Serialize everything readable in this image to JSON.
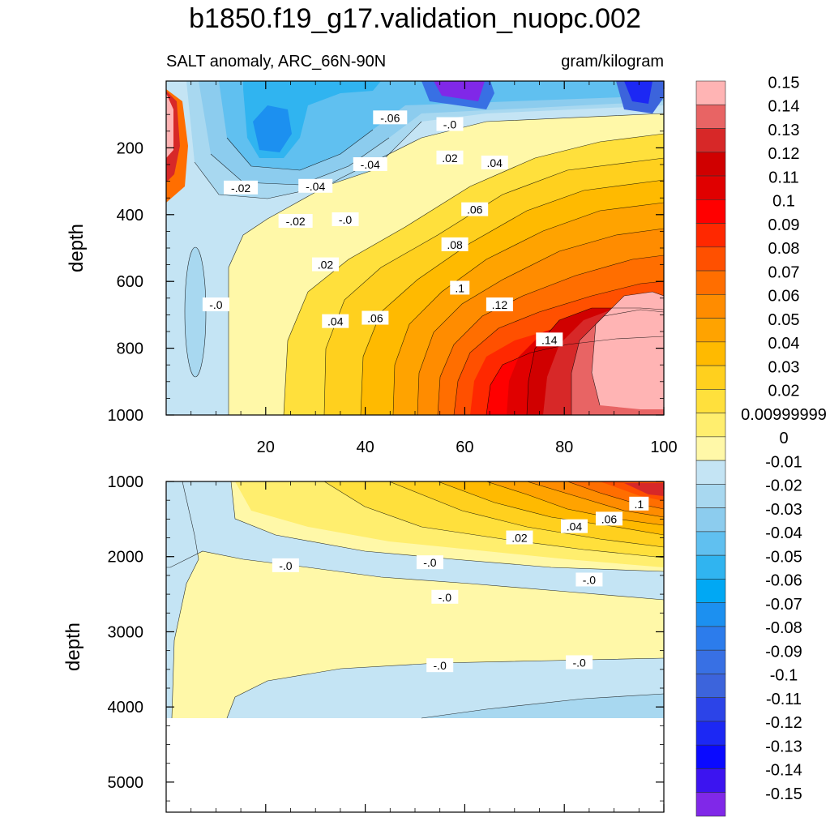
{
  "title": "b1850.f19_g17.validation_nuopc.002",
  "chart_data": {
    "type": "contour",
    "title": "b1850.f19_g17.validation_nuopc.002",
    "variable_label": "SALT anomaly, ARC_66N-90N",
    "units_label": "gram/kilogram",
    "panels": [
      {
        "name": "upper",
        "ylabel": "depth",
        "ylim": [
          0,
          1000
        ],
        "yticks": [
          "200",
          "400",
          "600",
          "800",
          "1000"
        ],
        "xlim": [
          0,
          100
        ],
        "xticks": [
          "20",
          "40",
          "60",
          "80",
          "100"
        ],
        "contour_labels": [
          {
            "text": "-.06",
            "x": 45,
            "y": 110
          },
          {
            "text": "-.0",
            "x": 57,
            "y": 130
          },
          {
            "text": ".02",
            "x": 57,
            "y": 230
          },
          {
            "text": ".04",
            "x": 66,
            "y": 245
          },
          {
            "text": "-.04",
            "x": 41,
            "y": 250
          },
          {
            "text": "-.02",
            "x": 15,
            "y": 320
          },
          {
            "text": "-.04",
            "x": 30,
            "y": 315
          },
          {
            "text": "-.02",
            "x": 26,
            "y": 420
          },
          {
            "text": "-.0",
            "x": 36,
            "y": 415
          },
          {
            "text": ".06",
            "x": 62,
            "y": 385
          },
          {
            "text": ".08",
            "x": 58,
            "y": 490
          },
          {
            "text": ".02",
            "x": 32,
            "y": 550
          },
          {
            "text": ".1",
            "x": 59,
            "y": 620
          },
          {
            "text": ".12",
            "x": 67,
            "y": 670
          },
          {
            "text": "-.0",
            "x": 10,
            "y": 670
          },
          {
            "text": ".04",
            "x": 34,
            "y": 720
          },
          {
            "text": ".06",
            "x": 42,
            "y": 710
          },
          {
            "text": ".14",
            "x": 77,
            "y": 775
          }
        ]
      },
      {
        "name": "lower",
        "ylabel": "depth",
        "ylim": [
          1000,
          5400
        ],
        "yticks": [
          "1000",
          "2000",
          "3000",
          "4000",
          "5000"
        ],
        "xlim": [
          0,
          100
        ],
        "contour_labels": [
          {
            "text": ".1",
            "x": 95,
            "y": 1300
          },
          {
            "text": ".06",
            "x": 89,
            "y": 1500
          },
          {
            "text": ".04",
            "x": 82,
            "y": 1600
          },
          {
            "text": ".02",
            "x": 71,
            "y": 1750
          },
          {
            "text": "-.0",
            "x": 24,
            "y": 2120
          },
          {
            "text": "-.0",
            "x": 53,
            "y": 2080
          },
          {
            "text": "-.0",
            "x": 85,
            "y": 2310
          },
          {
            "text": "-.0",
            "x": 56,
            "y": 2540
          },
          {
            "text": "-.0",
            "x": 55,
            "y": 3450
          },
          {
            "text": "-.0",
            "x": 83,
            "y": 3410
          }
        ]
      }
    ],
    "colorbar": {
      "levels": [
        "0.15",
        "0.14",
        "0.13",
        "0.12",
        "0.11",
        "0.1",
        "0.09",
        "0.08",
        "0.07",
        "0.06",
        "0.05",
        "0.04",
        "0.03",
        "0.02",
        "0.00999999",
        "0",
        "-0.01",
        "-0.02",
        "-0.03",
        "-0.04",
        "-0.05",
        "-0.06",
        "-0.07",
        "-0.08",
        "-0.09",
        "-0.1",
        "-0.11",
        "-0.12",
        "-0.13",
        "-0.14",
        "-0.15"
      ],
      "colors": [
        "#FFB4B4",
        "#E86464",
        "#D72828",
        "#D00000",
        "#E00000",
        "#FF0000",
        "#FF2800",
        "#FF5000",
        "#FF6E00",
        "#FF8C00",
        "#FFA300",
        "#FFBA00",
        "#FFD01E",
        "#FFE03C",
        "#FFEE6E",
        "#FFF8A8",
        "#C4E4F4",
        "#A8D8F0",
        "#8CCCEE",
        "#60C0F0",
        "#30B4F0",
        "#00A8F4",
        "#1C90F0",
        "#2C7CEC",
        "#3870E4",
        "#3C64DC",
        "#2C44E8",
        "#1C28F4",
        "#0A0AFF",
        "#3C14F0",
        "#8028E8"
      ]
    }
  }
}
